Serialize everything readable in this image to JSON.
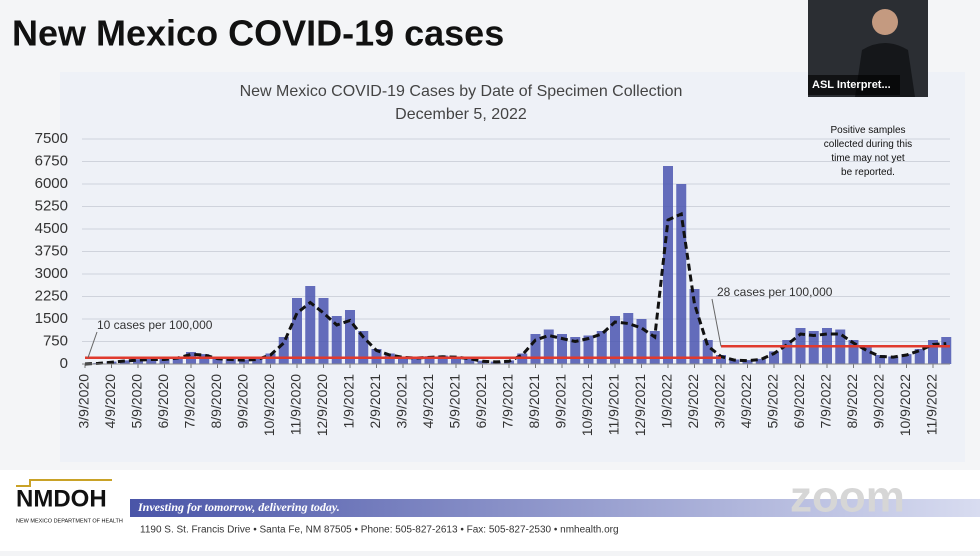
{
  "page": {
    "heading": "New Mexico COVID-19 cases",
    "video_label": "ASL Interpret...",
    "logo": "NMDOH",
    "logo_sub": "NEW MEXICO DEPARTMENT OF HEALTH",
    "slogan": "Investing for tomorrow, delivering today.",
    "address": "1190 S. St. Francis Drive • Santa Fe, NM 87505 • Phone: 505-827-2613 • Fax: 505-827-2530 • nmhealth.org",
    "watermark": "zoom"
  },
  "chart_data": {
    "type": "bar",
    "title": "New Mexico COVID-19 Cases by Date of Specimen Collection",
    "subtitle": "December 5, 2022",
    "categories": [
      "3/9/2020",
      null,
      "4/9/2020",
      null,
      "5/9/2020",
      null,
      "6/9/2020",
      null,
      "7/9/2020",
      null,
      "8/9/2020",
      null,
      "9/9/2020",
      null,
      "10/9/2020",
      null,
      "11/9/2020",
      null,
      "12/9/2020",
      null,
      "1/9/2021",
      null,
      "2/9/2021",
      null,
      "3/9/2021",
      null,
      "4/9/2021",
      null,
      "5/9/2021",
      null,
      "6/9/2021",
      null,
      "7/9/2021",
      null,
      "8/9/2021",
      null,
      "9/9/2021",
      null,
      "10/9/2021",
      null,
      "11/9/2021",
      null,
      "12/9/2021",
      null,
      "1/9/2022",
      null,
      "2/9/2022",
      null,
      "3/9/2022",
      null,
      "4/9/2022",
      null,
      "5/9/2022",
      null,
      "6/9/2022",
      null,
      "7/9/2022",
      null,
      "8/9/2022",
      null,
      "9/9/2022",
      null,
      "10/9/2022",
      null,
      "11/9/2022",
      null
    ],
    "series": [
      {
        "type": "bar",
        "color": "#4a55b0",
        "values": [
          0,
          30,
          80,
          120,
          160,
          180,
          170,
          220,
          400,
          330,
          200,
          170,
          150,
          170,
          350,
          900,
          2200,
          2600,
          2200,
          1600,
          1800,
          1100,
          500,
          350,
          250,
          230,
          260,
          280,
          250,
          200,
          110,
          80,
          120,
          350,
          1000,
          1150,
          1000,
          900,
          950,
          1100,
          1600,
          1700,
          1500,
          1100,
          6600,
          6000,
          2500,
          800,
          300,
          150,
          130,
          170,
          420,
          800,
          1200,
          1100,
          1200,
          1150,
          800,
          550,
          300,
          250,
          330,
          500,
          800,
          900
        ]
      },
      {
        "type": "line",
        "color": "#111111",
        "values": [
          0,
          20,
          60,
          100,
          130,
          150,
          150,
          200,
          320,
          300,
          180,
          150,
          130,
          150,
          300,
          700,
          1700,
          2050,
          1700,
          1300,
          1450,
          900,
          450,
          300,
          220,
          200,
          220,
          240,
          230,
          180,
          90,
          70,
          90,
          300,
          800,
          950,
          850,
          750,
          850,
          1000,
          1400,
          1350,
          1200,
          900,
          4800,
          5000,
          2000,
          600,
          250,
          130,
          110,
          150,
          350,
          650,
          1000,
          950,
          1000,
          1000,
          700,
          450,
          250,
          230,
          300,
          450,
          650,
          680
        ]
      }
    ],
    "thresholds": [
      {
        "label": "10 cases per 100,000",
        "value": 210,
        "from": "3/9/2020",
        "to": "3/9/2022",
        "color": "#e03a2e"
      },
      {
        "label": "28 cases per 100,000",
        "value": 590,
        "from": "3/9/2022",
        "to": "11/9/2022",
        "color": "#e03a2e"
      }
    ],
    "note": "Positive samples collected during this time may not yet be reported.",
    "ylim": [
      0,
      7500
    ],
    "yticks": [
      0,
      750,
      1500,
      2250,
      3000,
      3750,
      4500,
      5250,
      6000,
      6750,
      7500
    ],
    "grid": true
  }
}
